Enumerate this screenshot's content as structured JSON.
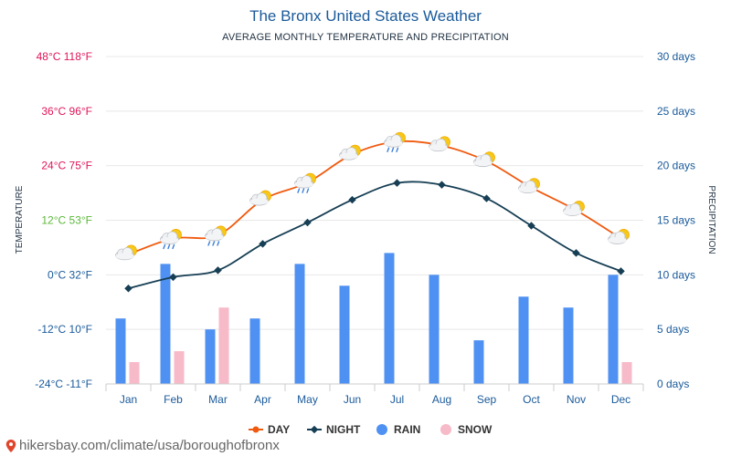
{
  "title": "The Bronx United States Weather",
  "subtitle": "AVERAGE MONTHLY TEMPERATURE AND PRECIPITATION",
  "source": "hikersbay.com/climate/usa/boroughofbronx",
  "colors": {
    "day": "#f05a0f",
    "night": "#163e54",
    "rain": "#4f91f2",
    "snow": "#f7bac8",
    "right_axis": "#1a5a9a",
    "grid": "#e8e8e8"
  },
  "chart_data": {
    "type": "line+bar",
    "categories": [
      "Jan",
      "Feb",
      "Mar",
      "Apr",
      "May",
      "Jun",
      "Jul",
      "Aug",
      "Sep",
      "Oct",
      "Nov",
      "Dec"
    ],
    "ylabel_left": "TEMPERATURE",
    "ylabel_right": "PRECIPITATION",
    "left_axis": {
      "range_c": [
        -24,
        48
      ],
      "ticks": [
        {
          "value": 48,
          "label": "48°C 118°F",
          "color": "#e0145a"
        },
        {
          "value": 36,
          "label": "36°C 96°F",
          "color": "#e0145a"
        },
        {
          "value": 24,
          "label": "24°C 75°F",
          "color": "#e0145a"
        },
        {
          "value": 12,
          "label": "12°C 53°F",
          "color": "#5cb83a"
        },
        {
          "value": 0,
          "label": "0°C 32°F",
          "color": "#1a5a9a"
        },
        {
          "value": -12,
          "label": "-12°C 10°F",
          "color": "#1a5a9a"
        },
        {
          "value": -24,
          "label": "-24°C -11°F",
          "color": "#1a5a9a"
        }
      ]
    },
    "right_axis": {
      "range_days": [
        0,
        30
      ],
      "ticks": [
        {
          "value": 30,
          "label": "30 days"
        },
        {
          "value": 25,
          "label": "25 days"
        },
        {
          "value": 20,
          "label": "20 days"
        },
        {
          "value": 15,
          "label": "15 days"
        },
        {
          "value": 10,
          "label": "10 days"
        },
        {
          "value": 5,
          "label": "5 days"
        },
        {
          "value": 0,
          "label": "0 days"
        }
      ]
    },
    "series": [
      {
        "name": "DAY",
        "kind": "line",
        "unit": "°C",
        "values": [
          4.5,
          8,
          8.7,
          16.5,
          20.3,
          26.5,
          29.3,
          28.4,
          25,
          19.2,
          14.2,
          8
        ]
      },
      {
        "name": "NIGHT",
        "kind": "line",
        "unit": "°C",
        "values": [
          -3,
          -0.5,
          1,
          6.8,
          11.5,
          16.5,
          20.2,
          19.8,
          16.8,
          10.8,
          4.8,
          0.8
        ]
      },
      {
        "name": "RAIN",
        "kind": "bar",
        "unit": "days",
        "values": [
          6,
          11,
          5,
          6,
          11,
          9,
          12,
          10,
          4,
          8,
          7,
          10
        ]
      },
      {
        "name": "SNOW",
        "kind": "bar",
        "unit": "days",
        "values": [
          2,
          3,
          7,
          0,
          0,
          0,
          0,
          0,
          0,
          0,
          0,
          2
        ]
      }
    ],
    "weather_icons": [
      "partly-sunny",
      "sun-rain",
      "sun-rain",
      "partly-sunny",
      "sun-rain",
      "partly-sunny",
      "sun-rain",
      "partly-sunny",
      "partly-sunny",
      "partly-sunny",
      "partly-sunny",
      "partly-sunny"
    ],
    "legend": [
      {
        "name": "DAY",
        "marker": "line-dot"
      },
      {
        "name": "NIGHT",
        "marker": "line-diamond"
      },
      {
        "name": "RAIN",
        "marker": "circle"
      },
      {
        "name": "SNOW",
        "marker": "circle"
      }
    ],
    "legend_position": "bottom-center",
    "grid": true
  }
}
